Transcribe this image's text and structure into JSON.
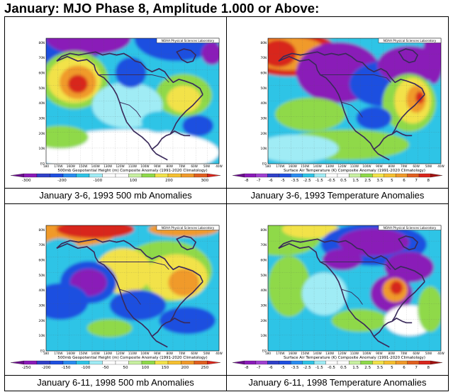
{
  "title": "January: MJO Phase 8, Amplitude 1.000 or Above:",
  "colors": {
    "purple": "#8a1ab8",
    "blue": "#1f4fe0",
    "cyan": "#2fc4e6",
    "lightcyan": "#a0ecf5",
    "white": "#ffffff",
    "green": "#8fd94a",
    "yellow": "#f2e24a",
    "orange": "#f09a2a",
    "red": "#d8261c"
  },
  "panels": [
    {
      "caption": "January 3-6, 1993 500 mb Anomalies",
      "credit": "NOAA Physical Sciences Laboratory",
      "bar_title": "500mb Geopotential Height (m) Composite Anomaly (1991-2020 Climatology)",
      "colorbar_labels": [
        "-300",
        "-200",
        "-100",
        "100",
        "200",
        "300"
      ],
      "colorbar_scheme": "height"
    },
    {
      "caption": "January 3-6, 1993 Temperature Anomalies",
      "credit": "NOAA Physical Sciences Laboratory",
      "bar_title": "Surface Air Temperature (K) Composite Anomaly (1991-2020 Climatology)",
      "colorbar_labels": [
        "-8",
        "-7",
        "-6",
        "-5",
        "-3.5",
        "-2.5",
        "-1.5",
        "-0.5",
        "0.5",
        "1.5",
        "2.5",
        "3.5",
        "5",
        "6",
        "7",
        "8"
      ],
      "colorbar_scheme": "temp"
    },
    {
      "caption": "January 6-11, 1998 500 mb Anomalies",
      "credit": "NOAA Physical Sciences Laboratory",
      "bar_title": "500mb Geopotential Height (m) Composite Anomaly (1991-2020 Climatology)",
      "colorbar_labels": [
        "-250",
        "-200",
        "-150",
        "-100",
        "-50",
        "50",
        "100",
        "150",
        "200",
        "250"
      ],
      "colorbar_scheme": "height"
    },
    {
      "caption": "January 6-11, 1998 Temperature Anomalies",
      "credit": "NOAA Physical Sciences Laboratory",
      "bar_title": "Surface Air Temperature (K) Composite Anomaly (1991-2020 Climatology)",
      "colorbar_labels": [
        "-8",
        "-7",
        "-6",
        "-5",
        "-3.5",
        "-2.5",
        "-1.5",
        "-0.5",
        "0.5",
        "1.5",
        "2.5",
        "3.5",
        "5",
        "6",
        "7",
        "8"
      ],
      "colorbar_scheme": "temp"
    }
  ],
  "axis": {
    "lon_labels": [
      "180",
      "170W",
      "160W",
      "150W",
      "140W",
      "130W",
      "120W",
      "110W",
      "100W",
      "90W",
      "80W",
      "70W",
      "60W",
      "50W",
      "40W"
    ],
    "lat_labels": [
      "EQ",
      "10N",
      "20N",
      "30N",
      "40N",
      "50N",
      "60N",
      "70N",
      "80N"
    ]
  }
}
